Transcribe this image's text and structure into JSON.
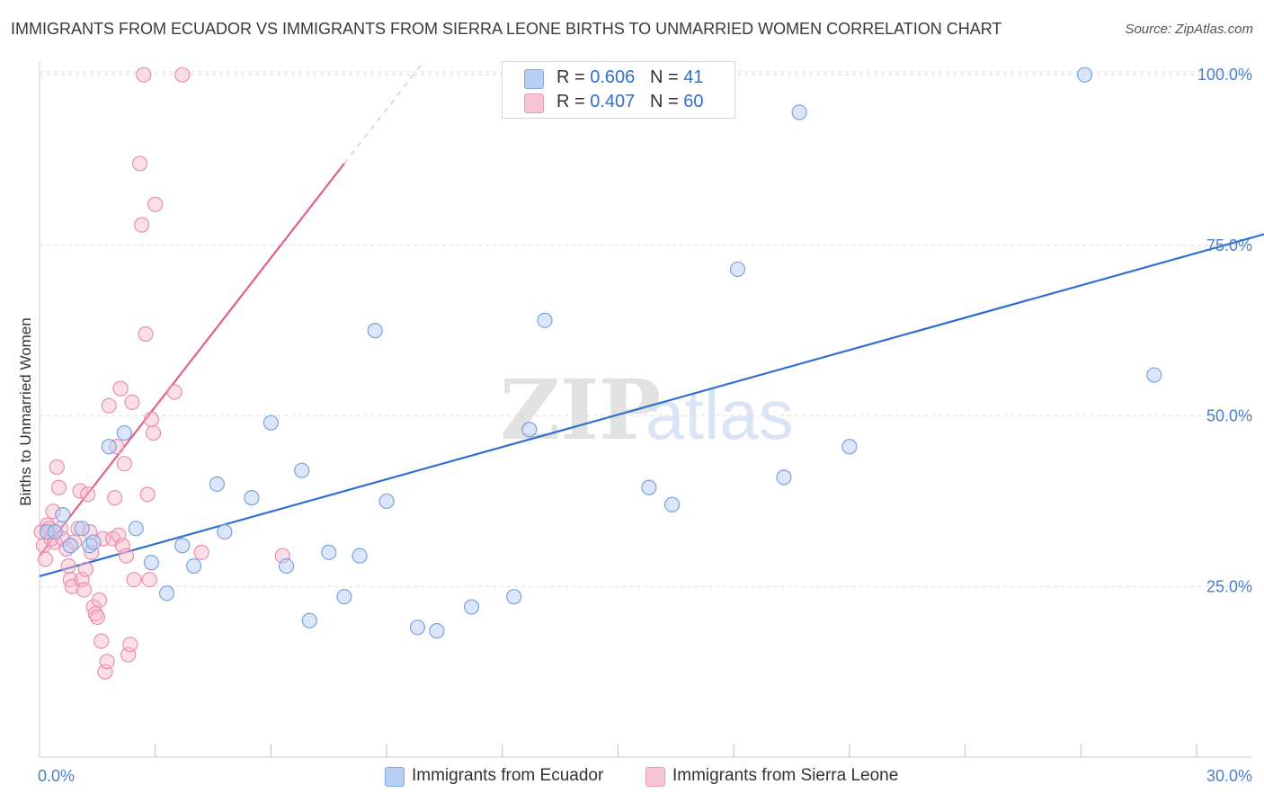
{
  "header": {
    "title": "IMMIGRANTS FROM ECUADOR VS IMMIGRANTS FROM SIERRA LEONE BIRTHS TO UNMARRIED WOMEN CORRELATION CHART",
    "source": "Source: ZipAtlas.com"
  },
  "legend": {
    "r_label": "R =",
    "n_label": "N =",
    "ecuador": {
      "r": "0.606",
      "n": "41"
    },
    "sierra": {
      "r": "0.407",
      "n": "60"
    }
  },
  "bottom_legend": {
    "ecuador": "Immigrants from Ecuador",
    "sierra": "Immigrants from Sierra Leone"
  },
  "watermark": {
    "zip": "ZIP",
    "atlas": "atlas"
  },
  "colors": {
    "blue": "#2f6fd0",
    "blue_fill": "#b8d0f3",
    "pink": "#e0608a",
    "pink_fill": "#f6b8cc",
    "tick_text": "#4a7fc8"
  },
  "chart_data": {
    "type": "scatter",
    "title": "IMMIGRANTS FROM ECUADOR VS IMMIGRANTS FROM SIERRA LEONE BIRTHS TO UNMARRIED WOMEN CORRELATION CHART",
    "xlabel": "",
    "ylabel": "Births to Unmarried Women",
    "xlim": [
      0,
      30
    ],
    "ylim": [
      0,
      102
    ],
    "x_tick_labels": [
      "0.0%",
      "30.0%"
    ],
    "y_ticks": [
      25,
      50,
      75,
      100
    ],
    "y_tick_labels": [
      "25.0%",
      "50.0%",
      "75.0%",
      "100.0%"
    ],
    "series": [
      {
        "name": "Immigrants from Ecuador",
        "r": 0.606,
        "n": 41,
        "trend": {
          "x0": 0.0,
          "y0": 26.5,
          "x1": 32.3,
          "y1": 77.5
        },
        "points": [
          [
            0.2,
            33.0
          ],
          [
            0.4,
            33.0
          ],
          [
            0.6,
            35.5
          ],
          [
            0.8,
            31.0
          ],
          [
            1.1,
            33.5
          ],
          [
            1.3,
            31.0
          ],
          [
            1.4,
            31.5
          ],
          [
            1.8,
            45.5
          ],
          [
            2.2,
            47.5
          ],
          [
            2.5,
            33.5
          ],
          [
            2.9,
            28.5
          ],
          [
            3.3,
            24.0
          ],
          [
            3.7,
            31.0
          ],
          [
            4.0,
            28.0
          ],
          [
            4.6,
            40.0
          ],
          [
            4.8,
            33.0
          ],
          [
            5.5,
            38.0
          ],
          [
            6.0,
            49.0
          ],
          [
            6.4,
            28.0
          ],
          [
            6.8,
            42.0
          ],
          [
            7.0,
            20.0
          ],
          [
            7.5,
            30.0
          ],
          [
            7.9,
            23.5
          ],
          [
            8.3,
            29.5
          ],
          [
            8.7,
            62.5
          ],
          [
            9.0,
            37.5
          ],
          [
            9.8,
            19.0
          ],
          [
            10.3,
            18.5
          ],
          [
            11.2,
            22.0
          ],
          [
            12.3,
            23.5
          ],
          [
            12.7,
            48.0
          ],
          [
            13.1,
            64.0
          ],
          [
            15.8,
            39.5
          ],
          [
            16.4,
            37.0
          ],
          [
            18.1,
            71.5
          ],
          [
            19.3,
            41.0
          ],
          [
            19.7,
            94.5
          ],
          [
            21.0,
            45.5
          ],
          [
            27.1,
            100.0
          ],
          [
            28.9,
            56.0
          ]
        ]
      },
      {
        "name": "Immigrants from Sierra Leone",
        "r": 0.407,
        "n": 60,
        "trend": {
          "x0": 0.0,
          "y0": 29.5,
          "x1": 7.9,
          "y1": 87.0
        },
        "trend_dashed": {
          "x0": 7.9,
          "y0": 87.0,
          "x1": 9.9,
          "y1": 101.5
        },
        "points": [
          [
            0.05,
            33.0
          ],
          [
            0.1,
            31.0
          ],
          [
            0.15,
            29.0
          ],
          [
            0.2,
            34.0
          ],
          [
            0.25,
            33.5
          ],
          [
            0.3,
            32.0
          ],
          [
            0.35,
            36.0
          ],
          [
            0.4,
            31.5
          ],
          [
            0.45,
            42.5
          ],
          [
            0.5,
            39.5
          ],
          [
            0.55,
            33.5
          ],
          [
            0.6,
            32.0
          ],
          [
            0.7,
            30.5
          ],
          [
            0.75,
            28.0
          ],
          [
            0.8,
            26.0
          ],
          [
            0.85,
            25.0
          ],
          [
            0.9,
            31.5
          ],
          [
            1.0,
            33.5
          ],
          [
            1.05,
            39.0
          ],
          [
            1.1,
            26.0
          ],
          [
            1.15,
            24.5
          ],
          [
            1.2,
            27.5
          ],
          [
            1.25,
            38.5
          ],
          [
            1.3,
            33.0
          ],
          [
            1.35,
            30.0
          ],
          [
            1.4,
            22.0
          ],
          [
            1.45,
            21.0
          ],
          [
            1.5,
            20.5
          ],
          [
            1.55,
            23.0
          ],
          [
            1.6,
            17.0
          ],
          [
            1.65,
            32.0
          ],
          [
            1.7,
            12.5
          ],
          [
            1.75,
            14.0
          ],
          [
            1.8,
            51.5
          ],
          [
            1.9,
            32.0
          ],
          [
            1.95,
            38.0
          ],
          [
            2.0,
            45.5
          ],
          [
            2.05,
            32.5
          ],
          [
            2.1,
            54.0
          ],
          [
            2.15,
            31.0
          ],
          [
            2.2,
            43.0
          ],
          [
            2.25,
            29.5
          ],
          [
            2.3,
            15.0
          ],
          [
            2.35,
            16.5
          ],
          [
            2.4,
            52.0
          ],
          [
            2.45,
            26.0
          ],
          [
            2.6,
            87.0
          ],
          [
            2.65,
            78.0
          ],
          [
            2.7,
            100.0
          ],
          [
            2.75,
            62.0
          ],
          [
            2.8,
            38.5
          ],
          [
            2.85,
            26.0
          ],
          [
            2.9,
            49.5
          ],
          [
            2.95,
            47.5
          ],
          [
            3.0,
            81.0
          ],
          [
            3.5,
            53.5
          ],
          [
            3.7,
            100.0
          ],
          [
            4.2,
            30.0
          ],
          [
            6.3,
            29.5
          ]
        ]
      }
    ]
  }
}
